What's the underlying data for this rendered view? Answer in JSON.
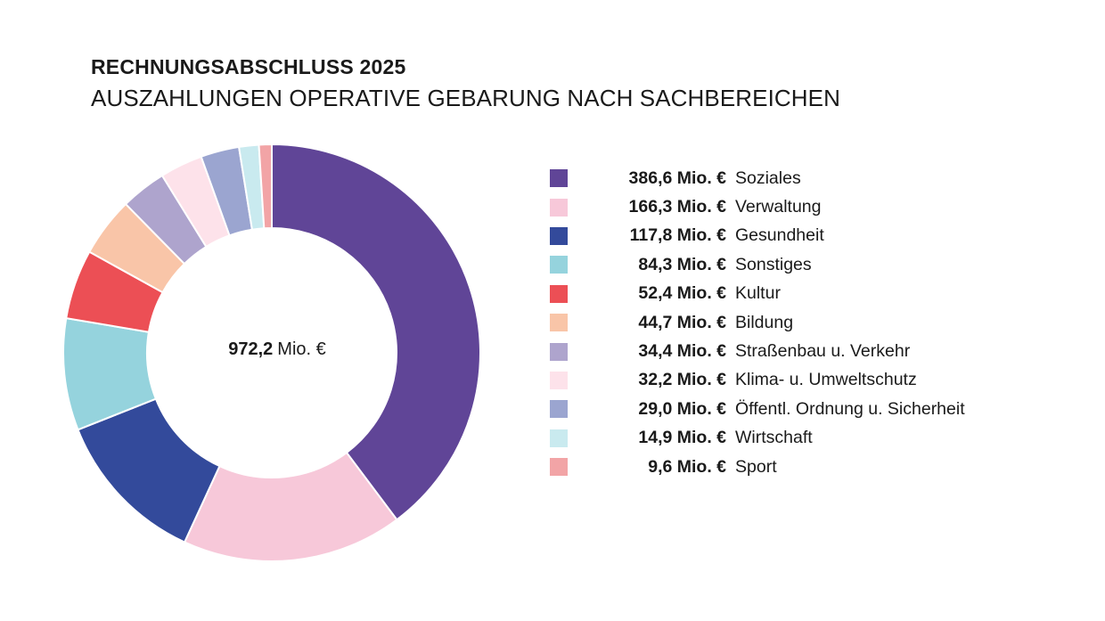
{
  "header": {
    "title": "RECHNUNGSABSCHLUSS 2025",
    "subtitle": "AUSZAHLUNGEN OPERATIVE GEBARUNG NACH SACHBEREICHEN"
  },
  "chart_data": {
    "type": "pie",
    "variant": "donut",
    "title": "RECHNUNGSABSCHLUSS 2025",
    "subtitle": "AUSZAHLUNGEN OPERATIVE GEBARUNG NACH SACHBEREICHEN",
    "unit": "Mio. €",
    "total": {
      "value": "972,2",
      "unit": "Mio. €"
    },
    "legend_position": "right",
    "slices": [
      {
        "label": "Soziales",
        "value": 386.6,
        "display": "386,6 Mio. €",
        "color": "#604597"
      },
      {
        "label": "Verwaltung",
        "value": 166.3,
        "display": "166,3 Mio. €",
        "color": "#f7c8d9"
      },
      {
        "label": "Gesundheit",
        "value": 117.8,
        "display": "117,8 Mio. €",
        "color": "#334a9b"
      },
      {
        "label": "Sonstiges",
        "value": 84.3,
        "display": "84,3 Mio. €",
        "color": "#95d3dd"
      },
      {
        "label": "Kultur",
        "value": 52.4,
        "display": "52,4 Mio. €",
        "color": "#ec4f55"
      },
      {
        "label": "Bildung",
        "value": 44.7,
        "display": "44,7 Mio. €",
        "color": "#f9c5a8"
      },
      {
        "label": "Straßenbau u. Verkehr",
        "value": 34.4,
        "display": "34,4 Mio. €",
        "color": "#aea4cd"
      },
      {
        "label": "Klima- u. Umweltschutz",
        "value": 32.2,
        "display": "32,2 Mio. €",
        "color": "#fde2ea"
      },
      {
        "label": "Öffentl. Ordnung u. Sicherheit",
        "value": 29.0,
        "display": "29,0 Mio. €",
        "color": "#9ba5d0"
      },
      {
        "label": "Wirtschaft",
        "value": 14.9,
        "display": "14,9 Mio. €",
        "color": "#c9eaef"
      },
      {
        "label": "Sport",
        "value": 9.6,
        "display": "9,6 Mio. €",
        "color": "#f2a4a6"
      }
    ]
  }
}
